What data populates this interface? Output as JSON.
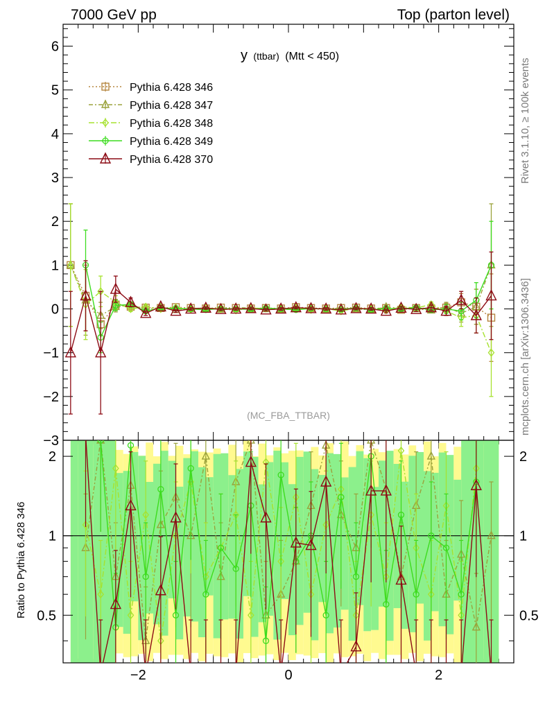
{
  "header": {
    "left": "7000 GeV pp",
    "right": "Top (parton level)"
  },
  "side_text": {
    "rivet": "Rivet 3.1.10, ≥ 100k events",
    "mcplots": "mcplots.cern.ch [arXiv:1306.3436]"
  },
  "chart_data": [
    {
      "type": "line",
      "panel": "main",
      "title": "y (ttbar) (Mtt < 450)",
      "title_main": "y",
      "title_sub": "(ttbar)",
      "title_cut": "(Mtt < 450)",
      "annotation": "(MC_FBA_TTBAR)",
      "xlim": [
        -3,
        3
      ],
      "ylim": [
        -3,
        6.5
      ],
      "x_ticks": [
        -2,
        0,
        2
      ],
      "y_ticks": [
        -2,
        -1,
        0,
        1,
        2,
        3,
        4,
        5,
        6
      ],
      "y_tick_labels": [
        "−2",
        "−1",
        "0",
        "1",
        "2",
        "3",
        "4",
        "5",
        "6"
      ],
      "legend_position": "top-left",
      "x": [
        -2.9,
        -2.7,
        -2.5,
        -2.3,
        -2.1,
        -1.9,
        -1.7,
        -1.5,
        -1.3,
        -1.1,
        -0.9,
        -0.7,
        -0.5,
        -0.3,
        -0.1,
        0.1,
        0.3,
        0.5,
        0.7,
        0.9,
        1.1,
        1.3,
        1.5,
        1.7,
        1.9,
        2.1,
        2.3,
        2.5,
        2.7
      ],
      "series": [
        {
          "name": "Pythia 6.428 346",
          "color": "#b5853f",
          "marker": "square",
          "dash": "2,3",
          "values": [
            1.0,
            0.3,
            -0.35,
            0.1,
            0.05,
            0.03,
            0.02,
            0.04,
            0.02,
            0.01,
            0.03,
            0.02,
            0.01,
            0.02,
            0.01,
            0.04,
            0.02,
            0.01,
            0.02,
            0.03,
            0.01,
            0.02,
            -0.02,
            0.02,
            0.01,
            0.03,
            0.15,
            0.05,
            -0.2
          ],
          "errors": [
            1.4,
            0.8,
            0.25,
            0.12,
            0.06,
            0.04,
            0.03,
            0.03,
            0.03,
            0.03,
            0.03,
            0.03,
            0.03,
            0.03,
            0.03,
            0.03,
            0.03,
            0.03,
            0.03,
            0.03,
            0.03,
            0.04,
            0.04,
            0.05,
            0.06,
            0.1,
            0.2,
            0.4,
            1.0
          ]
        },
        {
          "name": "Pythia 6.428 347",
          "color": "#9aa23b",
          "marker": "triangle",
          "dash": "6,3,2,3",
          "values": [
            1.0,
            0.2,
            -0.15,
            0.05,
            0.08,
            0.0,
            0.03,
            -0.02,
            0.01,
            0.02,
            -0.01,
            0.03,
            0.02,
            0.0,
            -0.02,
            0.01,
            0.03,
            -0.01,
            0.02,
            0.0,
            -0.02,
            0.04,
            0.02,
            0.0,
            -0.03,
            0.05,
            -0.1,
            0.05,
            1.0
          ],
          "errors": [
            1.4,
            0.8,
            0.3,
            0.12,
            0.06,
            0.04,
            0.03,
            0.03,
            0.03,
            0.03,
            0.03,
            0.03,
            0.03,
            0.03,
            0.03,
            0.03,
            0.03,
            0.03,
            0.03,
            0.03,
            0.03,
            0.04,
            0.04,
            0.05,
            0.06,
            0.1,
            0.2,
            0.4,
            1.4
          ]
        },
        {
          "name": "Pythia 6.428 348",
          "color": "#a6e22e",
          "marker": "diamond",
          "dash": "8,3,2,3",
          "values": [
            1.0,
            0.1,
            0.4,
            0.15,
            0.0,
            0.05,
            0.0,
            0.03,
            -0.01,
            0.02,
            0.0,
            -0.03,
            0.02,
            0.01,
            0.0,
            0.02,
            -0.02,
            0.01,
            -0.05,
            0.02,
            0.0,
            -0.03,
            0.05,
            0.02,
            0.1,
            -0.05,
            -0.2,
            -0.15,
            -1.0
          ],
          "errors": [
            1.4,
            0.8,
            0.35,
            0.15,
            0.06,
            0.04,
            0.03,
            0.03,
            0.03,
            0.03,
            0.03,
            0.03,
            0.03,
            0.03,
            0.03,
            0.03,
            0.03,
            0.03,
            0.03,
            0.03,
            0.03,
            0.04,
            0.04,
            0.05,
            0.06,
            0.1,
            0.2,
            0.4,
            1.0
          ]
        },
        {
          "name": "Pythia 6.428 349",
          "color": "#3cdc1e",
          "marker": "circle",
          "dash": "",
          "values": [
            null,
            1.0,
            -0.65,
            0.08,
            0.1,
            -0.05,
            0.02,
            0.01,
            0.0,
            -0.02,
            0.01,
            0.0,
            -0.01,
            0.02,
            0.0,
            -0.02,
            0.01,
            0.0,
            -0.01,
            0.02,
            -0.02,
            0.01,
            0.0,
            0.03,
            -0.02,
            0.0,
            -0.05,
            0.2,
            1.0
          ],
          "errors": [
            0,
            0.8,
            0.35,
            0.12,
            0.06,
            0.04,
            0.03,
            0.03,
            0.03,
            0.03,
            0.03,
            0.03,
            0.03,
            0.03,
            0.03,
            0.03,
            0.03,
            0.03,
            0.03,
            0.03,
            0.03,
            0.04,
            0.04,
            0.05,
            0.06,
            0.1,
            0.2,
            0.4,
            1.0
          ]
        },
        {
          "name": "Pythia 6.428 370",
          "color": "#8c0a14",
          "marker": "triangle-big",
          "dash": "",
          "values": [
            -1.0,
            0.3,
            -1.0,
            0.45,
            0.15,
            -0.1,
            0.05,
            -0.05,
            0.0,
            0.02,
            -0.01,
            0.0,
            0.01,
            -0.02,
            0.0,
            0.03,
            0.01,
            0.0,
            -0.02,
            0.01,
            0.0,
            -0.05,
            0.02,
            -0.01,
            0.03,
            -0.05,
            0.2,
            -0.15,
            0.3
          ],
          "errors": [
            1.4,
            0.8,
            1.4,
            0.3,
            0.1,
            0.05,
            0.03,
            0.03,
            0.03,
            0.03,
            0.03,
            0.03,
            0.03,
            0.03,
            0.03,
            0.03,
            0.03,
            0.03,
            0.03,
            0.03,
            0.03,
            0.04,
            0.04,
            0.05,
            0.06,
            0.1,
            0.2,
            0.4,
            1.0
          ]
        }
      ]
    },
    {
      "type": "line",
      "panel": "ratio",
      "ylabel": "Ratio to Pythia 6.428 346",
      "xlim": [
        -3,
        3
      ],
      "ylim": [
        0.33,
        2.3
      ],
      "y_ticks": [
        0.5,
        1,
        2
      ],
      "y_tick_labels": [
        "0.5",
        "1",
        "2"
      ],
      "x_ticks": [
        -2,
        0,
        2
      ],
      "x_tick_labels": [
        "−2",
        "0",
        "2"
      ],
      "reference_line": 1,
      "band_colors": {
        "outer": "#fffa90",
        "inner": "#8cf08c"
      },
      "x": [
        -2.9,
        -2.7,
        -2.5,
        -2.3,
        -2.1,
        -1.9,
        -1.7,
        -1.5,
        -1.3,
        -1.1,
        -0.9,
        -0.7,
        -0.5,
        -0.3,
        -0.1,
        0.1,
        0.3,
        0.5,
        0.7,
        0.9,
        1.1,
        1.3,
        1.5,
        1.7,
        1.9,
        2.1,
        2.3,
        2.5,
        2.7
      ],
      "series": [
        {
          "name": "Pythia 6.428 347",
          "values": [
            null,
            0.9,
            2.3,
            0.7,
            1.55,
            0.4,
            1.1,
            1.4,
            1.0,
            2.0,
            0.7,
            1.6,
            2.3,
            0.5,
            0.6,
            0.8,
            1.3,
            2.2,
            1.2,
            0.9,
            2.3,
            1.5,
            0.7,
            1.3,
            2.0,
            0.6,
            0.85,
            0.45,
            1.0
          ]
        },
        {
          "name": "Pythia 6.428 348",
          "values": [
            null,
            1.1,
            0.6,
            1.8,
            0.5,
            1.2,
            0.4,
            1.0,
            1.6,
            0.7,
            0.9,
            1.2,
            0.5,
            1.9,
            0.8,
            1.4,
            0.6,
            1.1,
            1.5,
            0.5,
            1.2,
            0.7,
            2.1,
            0.9,
            0.6,
            1.3,
            0.5,
            1.8,
            null
          ]
        },
        {
          "name": "Pythia 6.428 349",
          "values": [
            null,
            null,
            2.3,
            0.45,
            2.2,
            0.7,
            1.5,
            0.5,
            1.8,
            0.6,
            0.9,
            0.75,
            1.3,
            0.4,
            1.7,
            0.8,
            1.0,
            0.5,
            1.4,
            0.7,
            2.0,
            0.55,
            1.2,
            0.6,
            1.0,
            0.9,
            0.6,
            1.6,
            null
          ]
        },
        {
          "name": "Pythia 6.428 370",
          "values": [
            null,
            2.4,
            0.3,
            0.55,
            1.3,
            0.3,
            0.62,
            1.17,
            0.3,
            0.3,
            0.3,
            0.3,
            1.9,
            1.17,
            0.3,
            0.94,
            0.92,
            1.6,
            0.3,
            0.38,
            1.48,
            1.48,
            0.68,
            0.3,
            0.3,
            0.3,
            0.3,
            1.55,
            0.3
          ]
        }
      ]
    }
  ]
}
